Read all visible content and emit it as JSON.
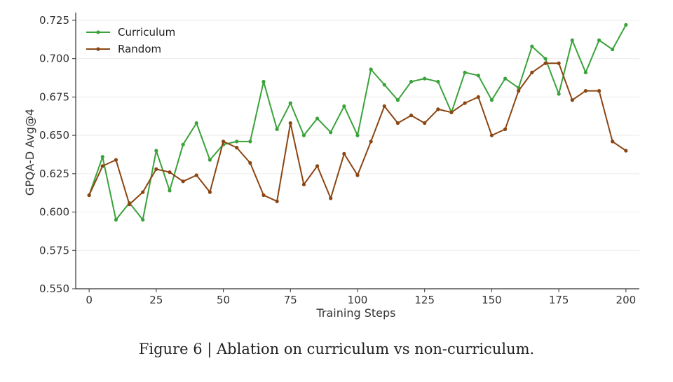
{
  "caption": "Figure 6 | Ablation on curriculum vs non-curriculum.",
  "chart_data": {
    "type": "line",
    "title": "",
    "xlabel": "Training Steps",
    "ylabel": "GPQA-D Avg@4",
    "xlim": [
      -5,
      205
    ],
    "ylim": [
      0.55,
      0.73
    ],
    "xticks": [
      0,
      25,
      50,
      75,
      100,
      125,
      150,
      175,
      200
    ],
    "xtick_labels": [
      "0",
      "25",
      "50",
      "75",
      "100",
      "125",
      "150",
      "175",
      "200"
    ],
    "yticks": [
      0.55,
      0.575,
      0.6,
      0.625,
      0.65,
      0.675,
      0.7,
      0.725
    ],
    "ytick_labels": [
      "0.550",
      "0.575",
      "0.600",
      "0.625",
      "0.650",
      "0.675",
      "0.700",
      "0.725"
    ],
    "grid": "horizontal",
    "legend_position": "top-left",
    "series": [
      {
        "name": "Curriculum",
        "color": "#3aa23a",
        "x": [
          0,
          5,
          10,
          15,
          20,
          25,
          30,
          35,
          40,
          45,
          50,
          55,
          60,
          65,
          70,
          75,
          80,
          85,
          90,
          95,
          100,
          105,
          110,
          115,
          120,
          125,
          130,
          135,
          140,
          145,
          150,
          155,
          160,
          165,
          170,
          175,
          180,
          185,
          190,
          195,
          200
        ],
        "y": [
          0.611,
          0.636,
          0.595,
          0.606,
          0.595,
          0.64,
          0.614,
          0.644,
          0.658,
          0.634,
          0.644,
          0.646,
          0.646,
          0.685,
          0.654,
          0.671,
          0.65,
          0.661,
          0.652,
          0.669,
          0.65,
          0.693,
          0.683,
          0.673,
          0.685,
          0.687,
          0.685,
          0.665,
          0.691,
          0.689,
          0.673,
          0.687,
          0.681,
          0.708,
          0.7,
          0.677,
          0.712,
          0.691,
          0.712,
          0.706,
          0.722
        ]
      },
      {
        "name": "Random",
        "color": "#8b4513",
        "x": [
          0,
          5,
          10,
          15,
          20,
          25,
          30,
          35,
          40,
          45,
          50,
          55,
          60,
          65,
          70,
          75,
          80,
          85,
          90,
          95,
          100,
          105,
          110,
          115,
          120,
          125,
          130,
          135,
          140,
          145,
          150,
          155,
          160,
          165,
          170,
          175,
          180,
          185,
          190,
          195,
          200
        ],
        "y": [
          0.611,
          0.63,
          0.634,
          0.605,
          0.613,
          0.628,
          0.626,
          0.62,
          0.624,
          0.613,
          0.646,
          0.642,
          0.632,
          0.611,
          0.607,
          0.658,
          0.618,
          0.63,
          0.609,
          0.638,
          0.624,
          0.646,
          0.669,
          0.658,
          0.663,
          0.658,
          0.667,
          0.665,
          0.671,
          0.675,
          0.65,
          0.654,
          0.679,
          0.691,
          0.697,
          0.697,
          0.673,
          0.679,
          0.679,
          0.646,
          0.64
        ]
      }
    ]
  }
}
